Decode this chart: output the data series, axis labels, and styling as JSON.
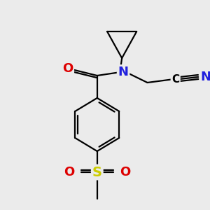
{
  "background_color": "#ebebeb",
  "atom_colors": {
    "C": "#000000",
    "N": "#2020dd",
    "O": "#dd0000",
    "S": "#cccc00"
  },
  "bond_color": "#000000",
  "bond_width": 1.6,
  "fig_size": [
    3.0,
    3.0
  ],
  "dpi": 100
}
